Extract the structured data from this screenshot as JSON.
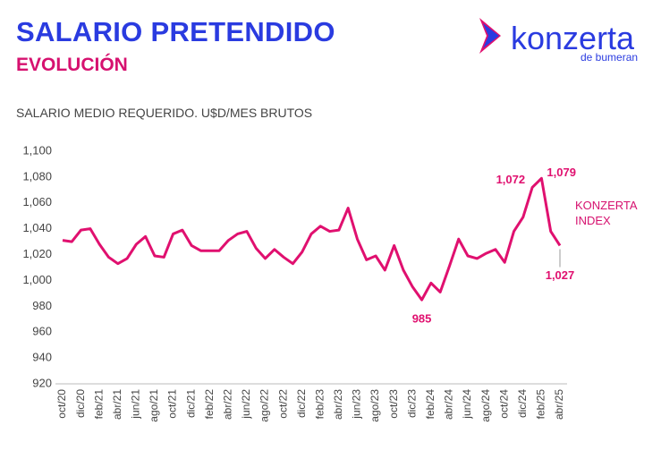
{
  "header": {
    "title": "SALARIO PRETENDIDO",
    "subtitle": "EVOLUCIÓN",
    "logo": "konzerta",
    "logo_sub": "de bumeran"
  },
  "chart_data": {
    "type": "line",
    "y_axis_label": "SALARIO MEDIO REQUERIDO. U$D/MES BRUTOS",
    "categories": [
      "oct/20",
      null,
      "dic/20",
      null,
      "feb/21",
      null,
      "abr/21",
      null,
      "jun/21",
      null,
      "ago/21",
      null,
      "oct/21",
      null,
      "dic/21",
      null,
      "feb/22",
      null,
      "abr/22",
      null,
      "jun/22",
      null,
      "ago/22",
      null,
      "oct/22",
      null,
      "dic/22",
      null,
      "feb/23",
      null,
      "abr/23",
      null,
      "jun/23",
      null,
      "ago/23",
      null,
      "oct/23",
      null,
      "dic/23",
      null,
      "feb/24",
      null,
      "abr/24",
      null,
      "jun/24",
      null,
      "ago/24",
      null,
      "oct/24",
      null,
      "dic/24",
      null,
      "feb/25",
      null,
      "abr/25"
    ],
    "series": [
      {
        "name": "KONZERTA INDEX",
        "color": "#e0106f",
        "values": [
          1031,
          1030,
          1039,
          1040,
          1028,
          1018,
          1013,
          1017,
          1028,
          1034,
          1019,
          1018,
          1036,
          1039,
          1027,
          1023,
          1023,
          1023,
          1031,
          1036,
          1038,
          1025,
          1017,
          1024,
          1018,
          1013,
          1022,
          1036,
          1042,
          1038,
          1039,
          1056,
          1032,
          1016,
          1019,
          1008,
          1027,
          1008,
          995,
          985,
          998,
          991,
          1011,
          1032,
          1019,
          1017,
          1021,
          1024,
          1014,
          1038,
          1049,
          1072,
          1079,
          1038,
          1027
        ],
        "value_labels": [
          null,
          null,
          null,
          null,
          null,
          null,
          null,
          null,
          null,
          null,
          null,
          null,
          null,
          null,
          null,
          null,
          null,
          null,
          null,
          null,
          null,
          null,
          null,
          null,
          null,
          null,
          null,
          null,
          null,
          null,
          null,
          null,
          null,
          null,
          null,
          null,
          null,
          null,
          null,
          "985",
          null,
          null,
          null,
          null,
          null,
          null,
          null,
          null,
          null,
          null,
          null,
          "1,072",
          "1,079",
          null,
          "1,027"
        ]
      }
    ],
    "ylim": [
      920,
      1100
    ],
    "yticks": [
      920,
      940,
      960,
      980,
      {
        "value": 1000,
        "label": "1,000"
      },
      {
        "value": 1020,
        "label": "1,020"
      },
      {
        "value": 1040,
        "label": "1,040"
      },
      {
        "value": 1060,
        "label": "1,060"
      },
      {
        "value": 1080,
        "label": "1,080"
      },
      {
        "value": 1100,
        "label": "1,100"
      }
    ],
    "grid": false
  }
}
